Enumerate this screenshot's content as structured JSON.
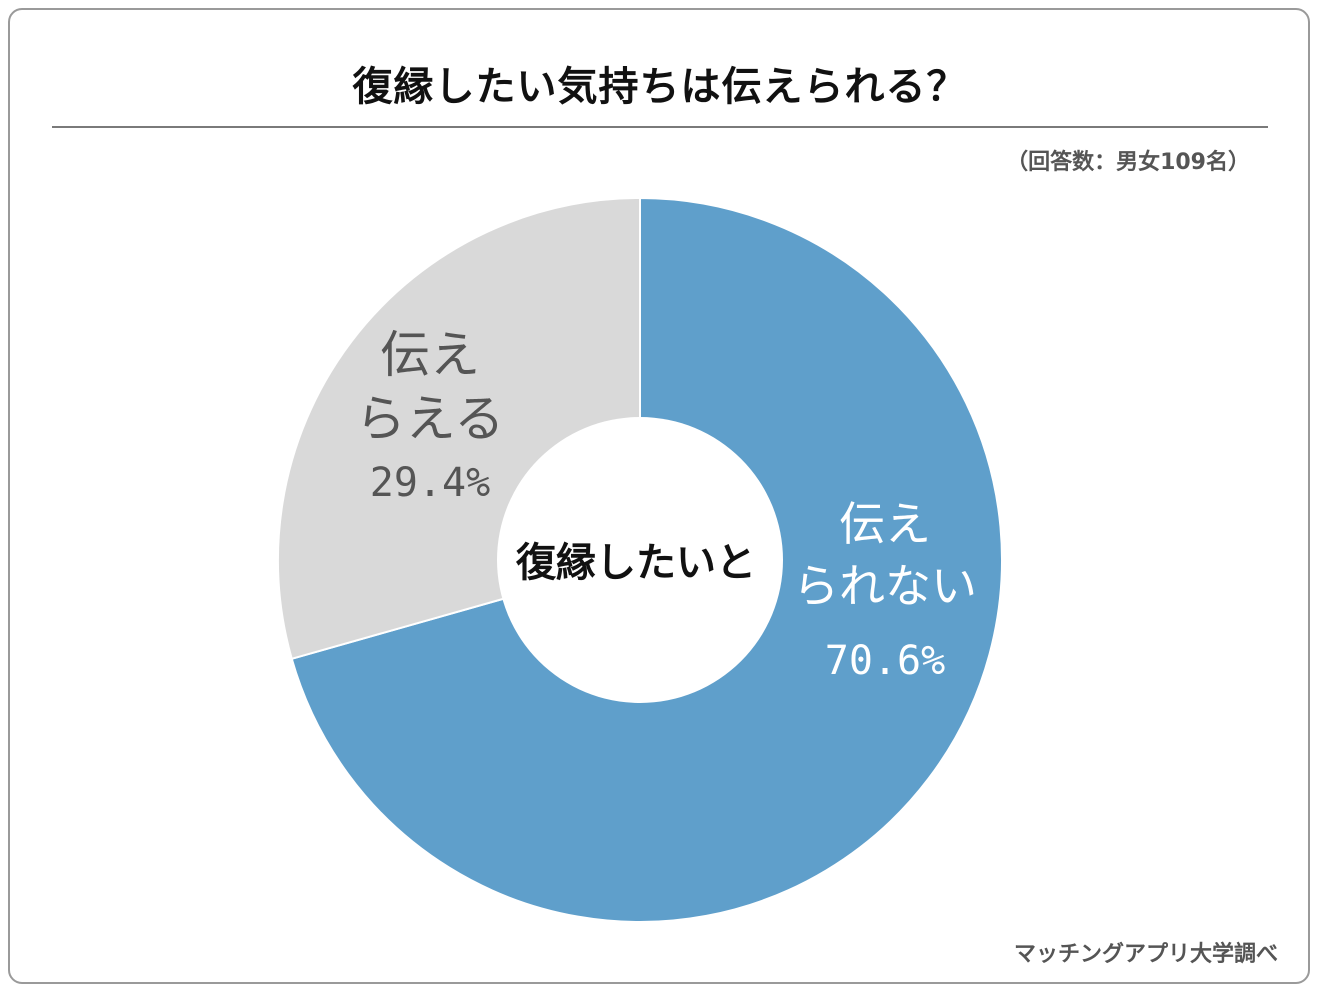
{
  "title": "復縁したい気持ちは伝えられる？",
  "respondents": "（回答数：男女109名）",
  "source": "マッチングアプリ大学調べ",
  "chart_data": {
    "type": "pie",
    "center_label": "復縁したいと",
    "slices": [
      {
        "label_lines": [
          "伝え",
          "られない"
        ],
        "value": 70.6,
        "value_label": "70.6%",
        "color": "#5f9fcb",
        "text_color": "#ffffff"
      },
      {
        "label_lines": [
          "伝え",
          "らえる"
        ],
        "value": 29.4,
        "value_label": "29.4%",
        "color": "#d9d9d9",
        "text_color": "#555555"
      }
    ]
  }
}
